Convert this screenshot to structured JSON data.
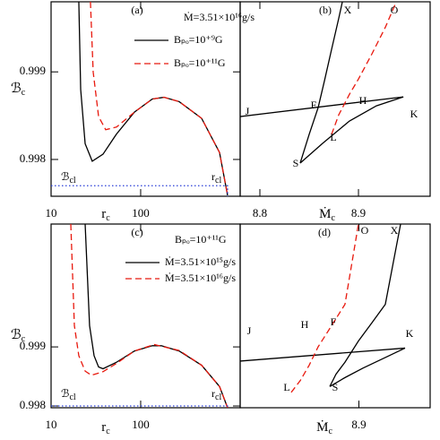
{
  "chart_data": [
    {
      "type": "line",
      "panel_label": "(a)",
      "xscale": "log",
      "xlim": [
        10,
        1290
      ],
      "ylim": [
        0.99758,
        0.9998
      ],
      "xticks": [
        10,
        100
      ],
      "yticks": [
        0.998,
        0.999
      ],
      "xlabel": {
        "main": "r",
        "sub": "c"
      },
      "ylabel": {
        "main": "ℬ",
        "sub": "c"
      },
      "annotations": [
        "Ṁ=3.51×10¹⁶g/s",
        {
          "main": "ℬ",
          "sub": "cl"
        },
        {
          "main": "r",
          "sub": "cl"
        }
      ],
      "series": [
        {
          "name": "Bₚₒ=10⁺⁹G",
          "color": "#000000",
          "line_style": "solid",
          "x": [
            20.4,
            21.4,
            24.0,
            28.8,
            38.0,
            53.7,
            85.1,
            134.9,
            182.0,
            269.2,
            478.6,
            758.6,
            933.3
          ],
          "values": [
            0.9998,
            0.9988,
            0.99818,
            0.99798,
            0.99806,
            0.99829,
            0.99854,
            0.99869,
            0.99871,
            0.99866,
            0.99847,
            0.99808,
            0.99759
          ]
        },
        {
          "name": "Bₚₒ=10⁺¹¹G",
          "color": "#e8190e",
          "line_style": "dashed",
          "x": [
            27.5,
            29.5,
            33.9,
            40.7,
            53.7,
            85.1,
            134.9,
            182.0,
            269.2,
            478.6,
            758.6,
            933.3
          ],
          "values": [
            0.9998,
            0.999,
            0.99849,
            0.99834,
            0.99837,
            0.99854,
            0.99869,
            0.99871,
            0.99866,
            0.99847,
            0.99808,
            0.99759
          ]
        },
        {
          "color": "#2a3fd8",
          "line_style": "dotted",
          "x": [
            10,
            933.3,
            933.3
          ],
          "values": [
            0.9977,
            0.9977,
            0.99758
          ]
        }
      ]
    },
    {
      "type": "line",
      "panel_label": "(b)",
      "xlim": [
        8.78,
        8.9727
      ],
      "ylim": [
        0.99758,
        0.9998
      ],
      "xticks": [
        8.8,
        8.9
      ],
      "xlabel": {
        "main": "Ṁ",
        "sub": "c"
      },
      "point_labels": [
        "J",
        "F",
        "H",
        "K",
        "L",
        "S",
        "X",
        "O"
      ],
      "series": [
        {
          "color": "#000000",
          "line_style": "solid",
          "x": [
            8.78,
            8.9455
          ],
          "values": [
            0.99849,
            0.998714
          ]
        },
        {
          "color": "#000000",
          "line_style": "solid",
          "x": [
            8.8409,
            8.85,
            8.8591,
            8.8655,
            8.8727,
            8.88,
            8.8836
          ],
          "values": [
            0.997959,
            0.998286,
            0.998592,
            0.998898,
            0.999255,
            0.999612,
            0.999796
          ]
        },
        {
          "color": "#000000",
          "line_style": "solid",
          "x": [
            8.8409,
            8.8636,
            8.8909,
            8.9182,
            8.9455
          ],
          "values": [
            0.997959,
            0.998184,
            0.998439,
            0.998612,
            0.998714
          ]
        },
        {
          "color": "#e8190e",
          "line_style": "dashed",
          "x": [
            8.8727,
            8.88,
            8.8909,
            8.9,
            8.9136,
            8.9273,
            8.9382
          ],
          "values": [
            0.998286,
            0.99851,
            0.998745,
            0.998918,
            0.999204,
            0.99951,
            0.999796
          ]
        }
      ]
    },
    {
      "type": "line",
      "panel_label": "(c)",
      "xscale": "log",
      "xlim": [
        10,
        1290
      ],
      "ylim": [
        0.99797,
        1.00108
      ],
      "xticks": [
        10,
        100
      ],
      "yticks": [
        0.998,
        0.999
      ],
      "xlabel": {
        "main": "r",
        "sub": "c"
      },
      "ylabel": {
        "main": "ℬ",
        "sub": "c"
      },
      "annotations": [
        "Bₚₒ=10⁺¹¹G",
        {
          "main": "ℬ",
          "sub": "cl"
        },
        {
          "main": "r",
          "sub": "cl"
        }
      ],
      "series": [
        {
          "name": "Ṁ=3.51×10¹⁵g/s",
          "color": "#000000",
          "line_style": "solid",
          "x": [
            24.0,
            26.9,
            30.2,
            33.9,
            38.0,
            53.7,
            85.1,
            134.9,
            169.8,
            269.2,
            478.6,
            758.6,
            933.3
          ],
          "values": [
            1.00108,
            0.99936,
            0.99885,
            0.99866,
            0.99863,
            0.99874,
            0.99893,
            0.99902,
            0.99902,
            0.99893,
            0.99869,
            0.99833,
            0.99797
          ]
        },
        {
          "name": "Ṁ=3.51×10¹⁶g/s",
          "color": "#e8190e",
          "line_style": "dashed",
          "x": [
            16.6,
            18.2,
            20.4,
            24.0,
            28.2,
            38.0,
            53.7,
            85.1,
            141.3,
            269.2,
            478.6,
            758.6,
            933.3
          ],
          "values": [
            1.00108,
            0.99936,
            0.99885,
            0.99859,
            0.99852,
            0.99858,
            0.99872,
            0.99893,
            0.99904,
            0.99894,
            0.99869,
            0.99833,
            0.99797
          ]
        },
        {
          "color": "#2a3fd8",
          "line_style": "dotted",
          "x": [
            10,
            933.3,
            933.3
          ],
          "values": [
            0.998,
            0.998,
            0.99797
          ]
        }
      ]
    },
    {
      "type": "line",
      "panel_label": "(d)",
      "xlim": [
        8.82,
        8.948
      ],
      "ylim": [
        0.99797,
        1.00108
      ],
      "xticks": [
        8.9
      ],
      "xlabel": {
        "main": "Ṁ",
        "sub": "c"
      },
      "point_labels": [
        "J",
        "H",
        "F",
        "K",
        "L",
        "S",
        "O",
        "X"
      ],
      "series": [
        {
          "color": "#000000",
          "line_style": "solid",
          "x": [
            8.82,
            8.9311
          ],
          "values": [
            0.99876,
            0.99898
          ]
        },
        {
          "color": "#000000",
          "line_style": "solid",
          "x": [
            8.8804,
            8.8846,
            8.8906,
            8.8997,
            8.9088,
            8.9178,
            8.9281
          ],
          "values": [
            0.99833,
            0.99854,
            0.99874,
            0.9991,
            0.99941,
            0.99972,
            1.00108
          ]
        },
        {
          "color": "#000000",
          "line_style": "solid",
          "x": [
            8.8804,
            8.8906,
            8.9027,
            8.9178,
            8.9311
          ],
          "values": [
            0.99833,
            0.99848,
            0.99864,
            0.99882,
            0.99898
          ]
        },
        {
          "color": "#e8190e",
          "line_style": "dashed",
          "x": [
            8.8544,
            8.8605,
            8.8665,
            8.8725,
            8.8816,
            8.8906,
            8.8997
          ],
          "values": [
            0.99823,
            0.99843,
            0.99869,
            0.999,
            0.99936,
            0.99972,
            1.00108
          ]
        }
      ]
    }
  ]
}
